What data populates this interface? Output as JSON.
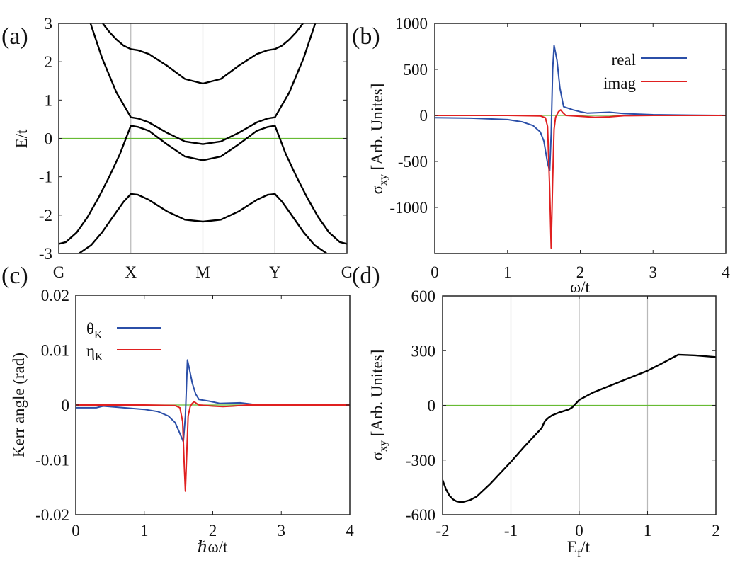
{
  "chart_data": [
    {
      "panel": "(a)",
      "type": "line",
      "title": "",
      "xlabel": "",
      "ylabel": "E/t",
      "xlim": [
        0,
        4
      ],
      "ylim": [
        -3,
        3
      ],
      "x_ticks": [
        0,
        1,
        2,
        3,
        4
      ],
      "x_tick_labels": [
        "G",
        "X",
        "M",
        "Y",
        "G"
      ],
      "y_ticks": [
        -3,
        -2,
        -1,
        0,
        1,
        2,
        3
      ],
      "y_tick_labels": [
        "-3",
        "-2",
        "-1",
        "0",
        "1",
        "2",
        "3"
      ],
      "vertical_gridlines": [
        1,
        2,
        3
      ],
      "reference_line": {
        "y": 0,
        "color": "#66bb33"
      },
      "series": [
        {
          "name": "band-1",
          "color": "#000000",
          "x": [
            0.61,
            0.7,
            0.8,
            0.9,
            1.0,
            1.1,
            1.25,
            1.5,
            1.75,
            2.0,
            2.25,
            2.5,
            2.75,
            2.9,
            3.0,
            3.1,
            3.2,
            3.3,
            3.39
          ],
          "y": [
            3.0,
            2.78,
            2.58,
            2.42,
            2.33,
            2.3,
            2.2,
            1.9,
            1.55,
            1.43,
            1.55,
            1.9,
            2.2,
            2.3,
            2.33,
            2.42,
            2.58,
            2.78,
            3.0
          ]
        },
        {
          "name": "band-2",
          "color": "#000000",
          "x": [
            0.44,
            0.6,
            0.8,
            1.0,
            1.1,
            1.25,
            1.5,
            1.75,
            2.0,
            2.25,
            2.5,
            2.75,
            2.9,
            3.0,
            3.2,
            3.4,
            3.56
          ],
          "y": [
            3.0,
            2.1,
            1.2,
            0.55,
            0.52,
            0.42,
            0.15,
            -0.08,
            -0.15,
            -0.08,
            0.15,
            0.42,
            0.52,
            0.55,
            1.2,
            2.1,
            3.0
          ]
        },
        {
          "name": "band-3",
          "color": "#000000",
          "x": [
            0.0,
            0.1,
            0.25,
            0.4,
            0.55,
            0.7,
            0.85,
            1.0,
            1.1,
            1.25,
            1.5,
            1.75,
            2.0,
            2.25,
            2.5,
            2.75,
            2.9,
            3.0,
            3.15,
            3.3,
            3.45,
            3.6,
            3.75,
            3.9,
            4.0
          ],
          "y": [
            -2.75,
            -2.7,
            -2.45,
            -2.05,
            -1.55,
            -1.0,
            -0.4,
            0.33,
            0.3,
            0.2,
            -0.15,
            -0.47,
            -0.57,
            -0.47,
            -0.15,
            0.2,
            0.3,
            0.33,
            -0.4,
            -1.0,
            -1.55,
            -2.05,
            -2.45,
            -2.7,
            -2.75
          ]
        },
        {
          "name": "band-4",
          "color": "#000000",
          "x": [
            0.28,
            0.45,
            0.6,
            0.75,
            0.9,
            1.0,
            1.1,
            1.25,
            1.5,
            1.75,
            2.0,
            2.25,
            2.5,
            2.75,
            2.9,
            3.0,
            3.1,
            3.25,
            3.4,
            3.55,
            3.72
          ],
          "y": [
            -3.0,
            -2.78,
            -2.45,
            -2.05,
            -1.65,
            -1.45,
            -1.47,
            -1.6,
            -1.9,
            -2.12,
            -2.17,
            -2.12,
            -1.9,
            -1.6,
            -1.47,
            -1.45,
            -1.65,
            -2.05,
            -2.45,
            -2.78,
            -3.0
          ]
        }
      ]
    },
    {
      "panel": "(b)",
      "type": "line",
      "title": "",
      "xlabel": "ω/t",
      "ylabel": "σxy [Arb. Unites]",
      "ylabel_main": "σ",
      "ylabel_sub": "xy",
      "ylabel_rest": " [Arb. Unites]",
      "xlim": [
        0,
        4
      ],
      "ylim": [
        -1500,
        1000
      ],
      "x_ticks": [
        0,
        1,
        2,
        3,
        4
      ],
      "x_tick_labels": [
        "0",
        "1",
        "2",
        "3",
        "4"
      ],
      "y_ticks": [
        -1000,
        -500,
        0,
        500,
        1000
      ],
      "y_tick_labels": [
        "-1000",
        "-500",
        "0",
        "500",
        "1000"
      ],
      "reference_line": {
        "y": 0,
        "color": "#66bb33"
      },
      "legend_position": "top-right",
      "series": [
        {
          "name": "real",
          "color": "#2b4fa8",
          "x": [
            0.0,
            0.5,
            1.0,
            1.2,
            1.35,
            1.45,
            1.5,
            1.55,
            1.58,
            1.6,
            1.62,
            1.64,
            1.68,
            1.72,
            1.77,
            1.9,
            2.0,
            2.1,
            2.4,
            2.6,
            3.0,
            3.5,
            4.0
          ],
          "y": [
            -25,
            -30,
            -45,
            -70,
            -110,
            -180,
            -280,
            -520,
            -600,
            -200,
            500,
            760,
            600,
            300,
            95,
            60,
            40,
            25,
            35,
            20,
            8,
            3,
            0
          ]
        },
        {
          "name": "imag",
          "color": "#e02020",
          "x": [
            0.0,
            1.0,
            1.45,
            1.52,
            1.55,
            1.58,
            1.6,
            1.62,
            1.64,
            1.66,
            1.7,
            1.73,
            1.76,
            1.8,
            2.0,
            2.2,
            2.4,
            2.6,
            3.0,
            4.0
          ],
          "y": [
            0,
            0,
            -5,
            -25,
            -120,
            -800,
            -1440,
            -700,
            -150,
            -20,
            40,
            60,
            30,
            0,
            -10,
            -20,
            -15,
            -3,
            0,
            0
          ]
        }
      ]
    },
    {
      "panel": "(c)",
      "type": "line",
      "title": "",
      "xlabel": "ℏω/t",
      "ylabel": "Kerr angle (rad)",
      "xlim": [
        0,
        4
      ],
      "ylim": [
        -0.02,
        0.02
      ],
      "x_ticks": [
        0,
        1,
        2,
        3,
        4
      ],
      "x_tick_labels": [
        "0",
        "1",
        "2",
        "3",
        "4"
      ],
      "y_ticks": [
        -0.02,
        -0.01,
        0,
        0.01,
        0.02
      ],
      "y_tick_labels": [
        "-0.02",
        "-0.01",
        "0",
        "0.01",
        "0.02"
      ],
      "reference_line": {
        "y": 0,
        "color": "#66bb33"
      },
      "legend_position": "top-left",
      "series": [
        {
          "name": "θK",
          "label_main": "θ",
          "label_sub": "K",
          "color": "#2b4fa8",
          "x": [
            0.0,
            0.3,
            0.4,
            0.7,
            1.0,
            1.2,
            1.35,
            1.45,
            1.52,
            1.57,
            1.6,
            1.63,
            1.66,
            1.7,
            1.75,
            1.8,
            1.95,
            2.1,
            2.4,
            2.6,
            3.0,
            4.0
          ],
          "y": [
            -0.0005,
            -0.0005,
            -0.0002,
            -0.0005,
            -0.0008,
            -0.0012,
            -0.002,
            -0.0032,
            -0.0052,
            -0.0067,
            -0.002,
            0.0082,
            0.0065,
            0.004,
            0.002,
            0.001,
            0.0007,
            0.0003,
            0.0004,
            0.0001,
            0.0001,
            0.0
          ]
        },
        {
          "name": "ηK",
          "label_main": "η",
          "label_sub": "K",
          "color": "#e02020",
          "x": [
            0.0,
            1.0,
            1.45,
            1.52,
            1.56,
            1.58,
            1.6,
            1.62,
            1.64,
            1.67,
            1.7,
            1.73,
            1.76,
            1.8,
            2.0,
            2.15,
            2.3,
            2.5,
            3.0,
            4.0
          ],
          "y": [
            0.0,
            0.0,
            -0.0001,
            -0.0005,
            -0.003,
            -0.01,
            -0.0157,
            -0.009,
            -0.002,
            -0.0003,
            0.0003,
            0.0006,
            0.0003,
            0.0,
            -0.0002,
            -0.0003,
            -0.0002,
            0.0,
            0.0,
            0.0
          ]
        }
      ]
    },
    {
      "panel": "(d)",
      "type": "line",
      "title": "",
      "xlabel": "Ef/t",
      "xlabel_main": "E",
      "xlabel_sub": "f",
      "xlabel_rest": "/t",
      "ylabel": "σxy [Arb. Unites]",
      "ylabel_main": "σ",
      "ylabel_sub": "xy",
      "ylabel_rest": " [Arb. Unites]",
      "xlim": [
        -2,
        2
      ],
      "ylim": [
        -600,
        600
      ],
      "x_ticks": [
        -2,
        -1,
        0,
        1,
        2
      ],
      "x_tick_labels": [
        "-2",
        "-1",
        "0",
        "1",
        "2"
      ],
      "y_ticks": [
        -600,
        -300,
        0,
        300,
        600
      ],
      "y_tick_labels": [
        "-600",
        "-300",
        "0",
        "300",
        "600"
      ],
      "vertical_gridlines": [
        -1,
        0,
        1
      ],
      "reference_line": {
        "y": 0,
        "color": "#66bb33"
      },
      "series": [
        {
          "name": "sigma-xy",
          "color": "#000000",
          "x": [
            -2.0,
            -1.95,
            -1.9,
            -1.85,
            -1.8,
            -1.75,
            -1.7,
            -1.6,
            -1.5,
            -1.3,
            -1.1,
            -1.0,
            -0.8,
            -0.6,
            -0.55,
            -0.52,
            -0.5,
            -0.45,
            -0.4,
            -0.3,
            -0.2,
            -0.15,
            -0.1,
            0.0,
            0.2,
            0.5,
            0.8,
            1.0,
            1.2,
            1.45,
            1.7,
            2.0
          ],
          "y": [
            -410,
            -460,
            -495,
            -515,
            -526,
            -530,
            -530,
            -520,
            -500,
            -430,
            -350,
            -310,
            -225,
            -145,
            -125,
            -100,
            -85,
            -68,
            -55,
            -40,
            -28,
            -22,
            -10,
            30,
            70,
            115,
            160,
            190,
            228,
            278,
            274,
            265
          ]
        }
      ]
    }
  ]
}
